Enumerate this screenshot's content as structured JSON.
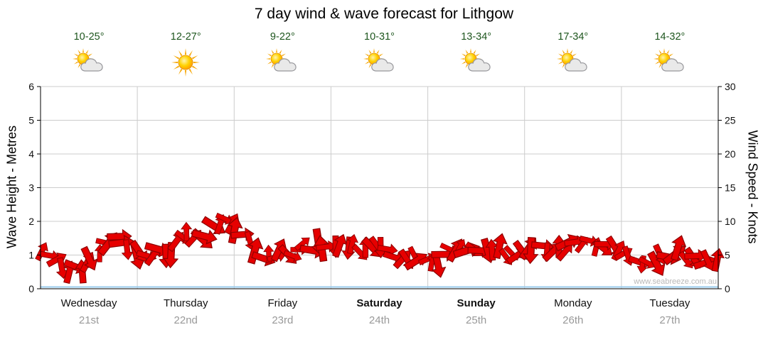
{
  "title": "7 day wind & wave forecast for Lithgow",
  "watermark": "www.seabreeze.com.au",
  "days": [
    {
      "name": "Wednesday",
      "date": "21st",
      "temp": "10-25°",
      "icon": "sun-cloud",
      "weekend": false
    },
    {
      "name": "Thursday",
      "date": "22nd",
      "temp": "12-27°",
      "icon": "sun",
      "weekend": false
    },
    {
      "name": "Friday",
      "date": "23rd",
      "temp": "9-22°",
      "icon": "sun-cloud",
      "weekend": false
    },
    {
      "name": "Saturday",
      "date": "24th",
      "temp": "10-31°",
      "icon": "sun-cloud",
      "weekend": true
    },
    {
      "name": "Sunday",
      "date": "25th",
      "temp": "13-34°",
      "icon": "sun-cloud",
      "weekend": true
    },
    {
      "name": "Monday",
      "date": "26th",
      "temp": "17-34°",
      "icon": "sun-cloud",
      "weekend": false
    },
    {
      "name": "Tuesday",
      "date": "27th",
      "temp": "14-32°",
      "icon": "sun-cloud",
      "weekend": false
    }
  ],
  "chart_data": {
    "type": "line",
    "title": "7 day wind & wave forecast for Lithgow",
    "x_categories": [
      "Wednesday 21st",
      "Thursday 22nd",
      "Friday 23rd",
      "Saturday 24th",
      "Sunday 25th",
      "Monday 26th",
      "Tuesday 27th"
    ],
    "samples_per_day": 8,
    "grid": true,
    "legend": "none",
    "left_axis": {
      "label": "Wave Height - Metres",
      "min": 0,
      "max": 6,
      "ticks": [
        0,
        1,
        2,
        3,
        4,
        5,
        6
      ]
    },
    "right_axis": {
      "label": "Wind Speed - Knots",
      "min": 0,
      "max": 30,
      "ticks": [
        0,
        5,
        10,
        15,
        20,
        25,
        30
      ]
    },
    "series": [
      {
        "name": "Wind Speed",
        "units": "knots",
        "axis": "right",
        "style": "wind-arrows",
        "color": "#e60000",
        "outline": "#8f0000",
        "values": [
          5,
          3.8,
          2.8,
          3,
          4.5,
          6.5,
          7.5,
          5,
          5,
          5.5,
          5,
          7,
          8.5,
          7.5,
          9.5,
          10.5,
          8.5,
          6,
          5,
          5.5,
          5,
          6,
          6.5,
          6,
          5.5,
          6.5,
          6,
          7,
          6,
          4.5,
          4,
          5,
          4,
          5,
          6,
          6.5,
          5.5,
          6,
          5,
          5.5,
          5,
          6,
          5.5,
          6.5,
          7,
          6.5,
          6,
          5.5,
          5,
          4,
          4.5,
          5,
          5.5,
          4.5,
          4,
          4.5
        ]
      },
      {
        "name": "Wave Height",
        "units": "metres",
        "axis": "left",
        "style": "line",
        "color": "#99ccee",
        "values": [
          0,
          0,
          0,
          0,
          0,
          0,
          0
        ]
      }
    ]
  },
  "colors": {
    "background": "#ffffff",
    "temp_text": "#1e561e",
    "grid": "#cccccc",
    "axis": "#000000",
    "tick_text": "#111111",
    "day_label": "#111111",
    "date_label": "#999999",
    "watermark": "#b8b8b8",
    "wind_arrow": "#e60000",
    "wind_arrow_outline": "#8f0000",
    "wave_line": "#99ccee"
  }
}
